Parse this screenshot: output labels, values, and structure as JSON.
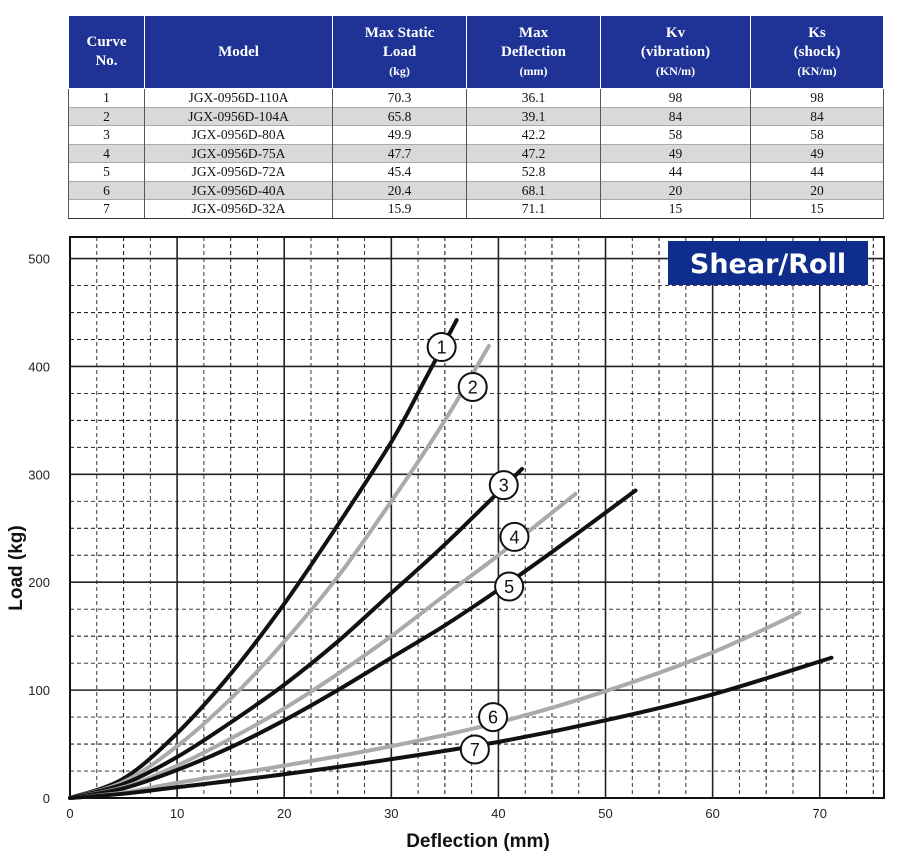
{
  "table": {
    "headers": [
      {
        "lines": [
          "Curve",
          "No."
        ],
        "unit": ""
      },
      {
        "lines": [
          "Model"
        ],
        "unit": ""
      },
      {
        "lines": [
          "Max Static",
          "Load"
        ],
        "unit": "(kg)"
      },
      {
        "lines": [
          "Max",
          "Deflection"
        ],
        "unit": "(mm)"
      },
      {
        "lines": [
          "Kv",
          "(vibration)"
        ],
        "unit": "(KN/m)"
      },
      {
        "lines": [
          "Ks",
          "(shock)"
        ],
        "unit": "(KN/m)"
      }
    ],
    "rows": [
      [
        "1",
        "JGX-0956D-110A",
        "70.3",
        "36.1",
        "98",
        "98"
      ],
      [
        "2",
        "JGX-0956D-104A",
        "65.8",
        "39.1",
        "84",
        "84"
      ],
      [
        "3",
        "JGX-0956D-80A",
        "49.9",
        "42.2",
        "58",
        "58"
      ],
      [
        "4",
        "JGX-0956D-75A",
        "47.7",
        "47.2",
        "49",
        "49"
      ],
      [
        "5",
        "JGX-0956D-72A",
        "45.4",
        "52.8",
        "44",
        "44"
      ],
      [
        "6",
        "JGX-0956D-40A",
        "20.4",
        "68.1",
        "20",
        "20"
      ],
      [
        "7",
        "JGX-0956D-32A",
        "15.9",
        "71.1",
        "15",
        "15"
      ]
    ],
    "header_color": "#1f3296",
    "stripe_color": "#d9d9d9"
  },
  "chart_data": {
    "type": "line",
    "badge": "Shear/Roll",
    "badge_color": "#0f2d8c",
    "xlabel": "Deflection (mm)",
    "ylabel": "Load (kg)",
    "xlim": [
      0,
      76
    ],
    "ylim": [
      0,
      520
    ],
    "xticks": [
      "0",
      "10",
      "20",
      "30",
      "40",
      "50",
      "60",
      "70"
    ],
    "yticks": [
      "0",
      "100",
      "200",
      "300",
      "400",
      "500"
    ],
    "grid": true,
    "series": [
      {
        "name": "1",
        "color": "#111111",
        "x": [
          0,
          5,
          10,
          15,
          20,
          25,
          30,
          33,
          36.1
        ],
        "y": [
          0,
          18,
          60,
          115,
          180,
          253,
          330,
          385,
          443
        ],
        "label_pos": [
          34.7,
          418
        ]
      },
      {
        "name": "2",
        "color": "#aaaaaa",
        "x": [
          0,
          5,
          10,
          15,
          20,
          25,
          30,
          35,
          39.1
        ],
        "y": [
          0,
          15,
          48,
          92,
          145,
          205,
          275,
          350,
          419
        ],
        "label_pos": [
          37.6,
          381
        ]
      },
      {
        "name": "3",
        "color": "#111111",
        "x": [
          0,
          5,
          10,
          15,
          20,
          25,
          30,
          35,
          42.2
        ],
        "y": [
          0,
          13,
          38,
          70,
          105,
          145,
          190,
          235,
          305
        ],
        "label_pos": [
          40.5,
          290
        ]
      },
      {
        "name": "4",
        "color": "#aaaaaa",
        "x": [
          0,
          5,
          10,
          15,
          20,
          25,
          30,
          35,
          40,
          47.2
        ],
        "y": [
          0,
          10,
          30,
          55,
          83,
          115,
          150,
          188,
          225,
          282
        ],
        "label_pos": [
          41.5,
          242
        ]
      },
      {
        "name": "5",
        "color": "#111111",
        "x": [
          0,
          5,
          10,
          15,
          20,
          25,
          30,
          35,
          40,
          45,
          52.8
        ],
        "y": [
          0,
          9,
          26,
          47,
          72,
          100,
          130,
          160,
          193,
          228,
          285
        ],
        "label_pos": [
          41.0,
          196
        ]
      },
      {
        "name": "6",
        "color": "#aaaaaa",
        "x": [
          0,
          5,
          10,
          20,
          30,
          40,
          50,
          60,
          68.1
        ],
        "y": [
          0,
          5,
          14,
          30,
          48,
          70,
          99,
          135,
          172
        ],
        "label_pos": [
          39.5,
          75
        ]
      },
      {
        "name": "7",
        "color": "#111111",
        "x": [
          0,
          5,
          10,
          20,
          30,
          40,
          50,
          60,
          71.1
        ],
        "y": [
          0,
          4,
          10,
          22,
          36,
          52,
          72,
          96,
          130
        ],
        "label_pos": [
          37.8,
          45
        ]
      }
    ]
  }
}
